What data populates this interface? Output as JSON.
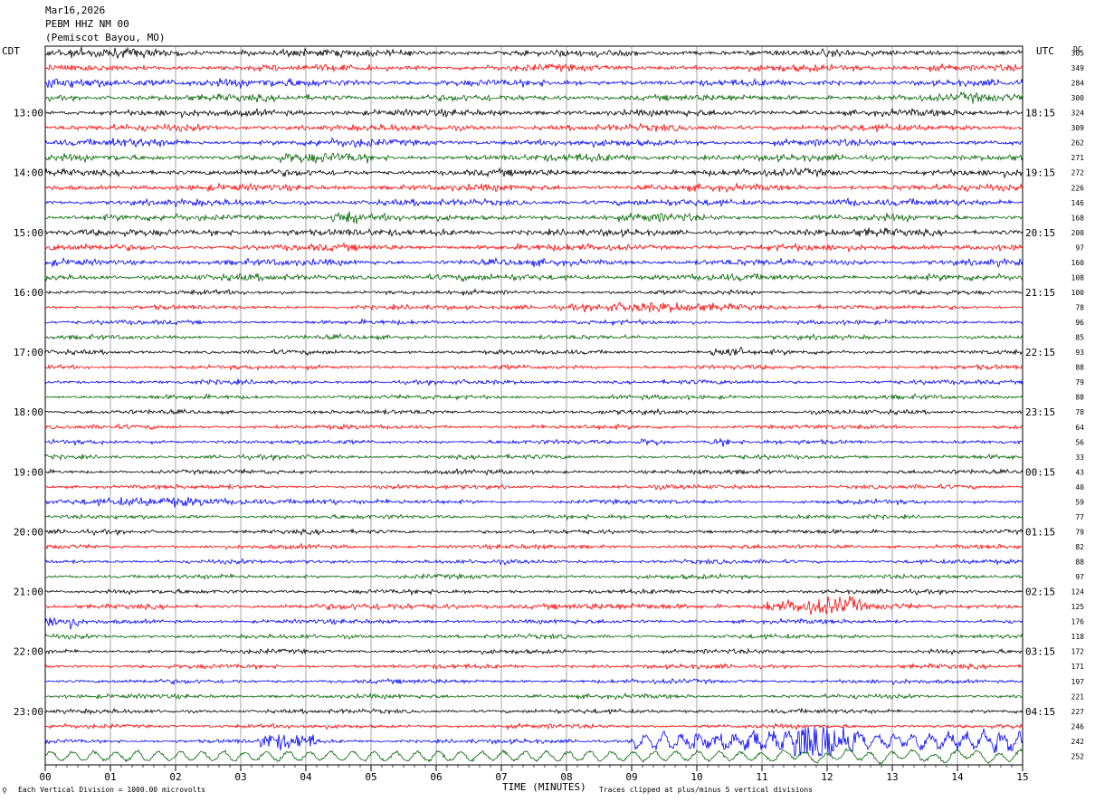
{
  "header": {
    "date": "Mar16,2026",
    "station": "PEBM HHZ NM 00",
    "location": "(Pemiscot Bayou, MO)"
  },
  "axes": {
    "left_timezone": "CDT",
    "right_timezone": "UTC",
    "dc_label": "DC"
  },
  "footer": {
    "scale_note": "Each Vertical Division = 1000.00 microvolts",
    "xlabel": "TIME (MINUTES)",
    "clip_note": "Traces clipped at plus/minus 5 vertical divisions"
  },
  "colors": {
    "cycle": [
      "#000000",
      "#ff0000",
      "#0000ff",
      "#006400"
    ]
  },
  "chart_data": {
    "type": "line",
    "x": {
      "label": "TIME (MINUTES)",
      "range": [
        0,
        15
      ],
      "ticks": [
        "00",
        "01",
        "02",
        "03",
        "04",
        "05",
        "06",
        "07",
        "08",
        "09",
        "10",
        "11",
        "12",
        "13",
        "14",
        "15"
      ]
    },
    "left_labels": [
      "13:00",
      "14:00",
      "15:00",
      "16:00",
      "17:00",
      "18:00",
      "19:00",
      "20:00",
      "21:00",
      "22:00",
      "23:00"
    ],
    "right_labels": [
      "18:15",
      "19:15",
      "20:15",
      "21:15",
      "22:15",
      "23:15",
      "00:15",
      "01:15",
      "02:15",
      "03:15",
      "04:15"
    ],
    "dc_offsets": [
      305,
      349,
      284,
      300,
      324,
      309,
      262,
      271,
      272,
      226,
      146,
      168,
      200,
      97,
      160,
      108,
      100,
      78,
      96,
      85,
      93,
      88,
      79,
      88,
      78,
      64,
      56,
      33,
      43,
      40,
      59,
      77,
      79,
      82,
      88,
      97,
      124,
      125,
      176,
      118,
      172,
      171,
      197,
      221,
      227,
      246,
      242,
      252
    ],
    "traces_count": 48,
    "trace_minutes": 15,
    "grid": true
  }
}
